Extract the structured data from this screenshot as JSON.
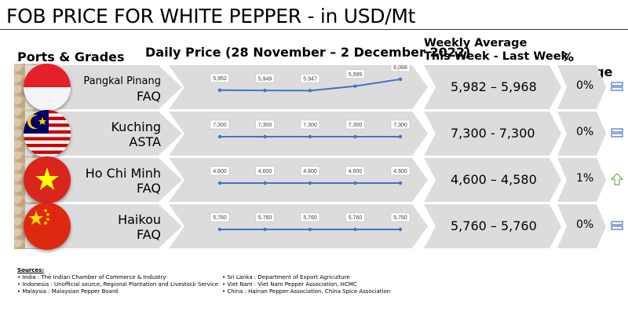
{
  "title": "FOB PRICE FOR WHITE PEPPER - in USD/Mt",
  "headers": {
    "ports": "Ports & Grades",
    "daily": "Daily Price (28 November – 2 December 2022)",
    "weekly_line1": "Weekly Average",
    "weekly_line2": "This Week - Last Week",
    "change": "% change"
  },
  "chart_data": [
    {
      "type": "line",
      "name": "Pangkal Pinang FAQ",
      "values": [
        5952,
        5949,
        5947,
        5995,
        6068
      ],
      "labels": [
        "5,952",
        "5,949",
        "5,947",
        "5,995",
        "6,068"
      ],
      "ylim": [
        5800,
        6150
      ],
      "color": "#4472c4"
    },
    {
      "type": "line",
      "name": "Kuching ASTA",
      "values": [
        7300,
        7300,
        7300,
        7300,
        7300
      ],
      "labels": [
        "7,300",
        "7,300",
        "7,300",
        "7,300",
        "7,300"
      ],
      "ylim": [
        7150,
        7500
      ],
      "color": "#4472c4"
    },
    {
      "type": "line",
      "name": "Ho Chi Minh FAQ",
      "values": [
        4600,
        4600,
        4600,
        4600,
        4600
      ],
      "labels": [
        "4,600",
        "4,600",
        "4,600",
        "4,600",
        "4,600"
      ],
      "ylim": [
        4450,
        4800
      ],
      "color": "#4472c4"
    },
    {
      "type": "line",
      "name": "Haikou FAQ",
      "values": [
        5760,
        5760,
        5760,
        5760,
        5760
      ],
      "labels": [
        "5,760",
        "5,760",
        "5,760",
        "5,760",
        "5,760"
      ],
      "ylim": [
        5610,
        5960
      ],
      "color": "#4472c4"
    }
  ],
  "rows": [
    {
      "port": "Pangkal Pinang",
      "grade": "FAQ",
      "avg": "5,982 – 5,968",
      "pct": "0%",
      "trend": "equal-icon"
    },
    {
      "port": "Kuching",
      "grade": "ASTA",
      "avg": "7,300 - 7,300",
      "pct": "0%",
      "trend": "equal-icon"
    },
    {
      "port": "Ho Chi Minh",
      "grade": "FAQ",
      "avg": "4,600 – 4,580",
      "pct": "1%",
      "trend": "up-arrow-icon"
    },
    {
      "port": "Haikou",
      "grade": "FAQ",
      "avg": "5,760 – 5,760",
      "pct": "0%",
      "trend": "equal-icon"
    }
  ],
  "sources": {
    "heading": "Sources:",
    "left": [
      "India : The Indian Chamber of Commerce & Industry",
      "Indonesia : Unofficial source, Regional Plantation and Livestock Service",
      "Malaysia : Malaysian Pepper Board"
    ],
    "right": [
      "Sri Lanka : Department of Export Agriculture",
      "Viet Nam : Viet Nam Pepper Association, HCMC",
      "China : Hainan Pepper Association, China Spice Association"
    ]
  }
}
